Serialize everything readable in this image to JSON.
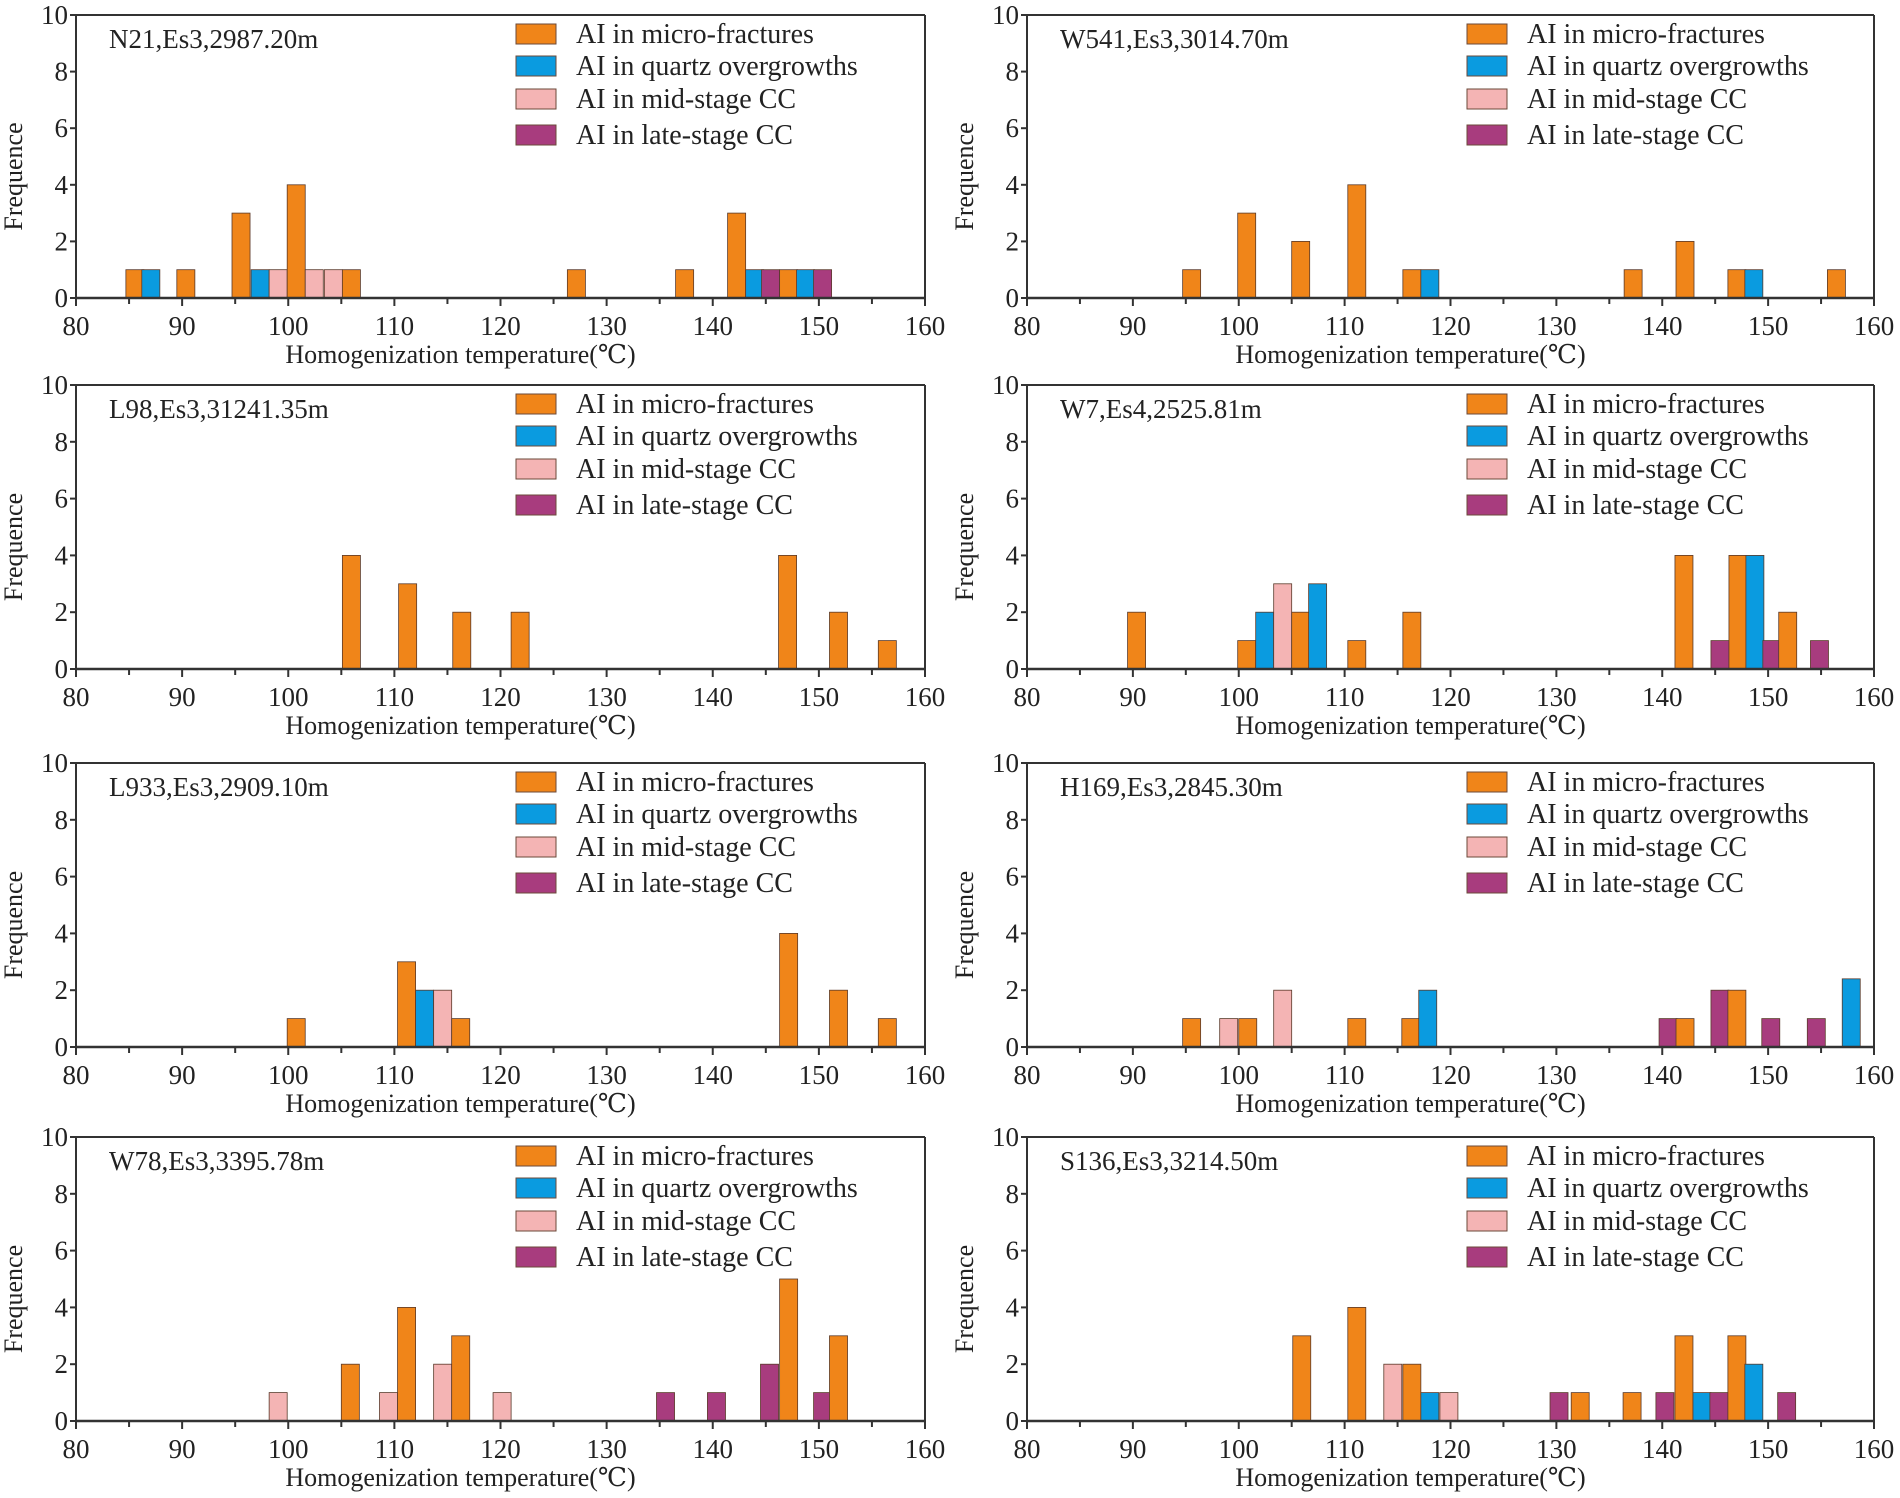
{
  "series": [
    {
      "key": "m",
      "name": "AI in micro-fractures",
      "color": "#F08519"
    },
    {
      "key": "q",
      "name": "AI in quartz overgrowths",
      "color": "#0A9BE0"
    },
    {
      "key": "p",
      "name": "AI in mid-stage CC",
      "color": "#F4B4B4"
    },
    {
      "key": "l",
      "name": "AI in late-stage CC",
      "color": "#A83C7E"
    }
  ],
  "chart_data": [
    {
      "type": "bar",
      "title": "N21,Es3,2987.20m",
      "xlabel": "Homogenization temperature(℃)",
      "ylabel": "Frequence",
      "xlim": [
        80,
        160
      ],
      "ylim": [
        0,
        10
      ],
      "xticks": [
        80,
        90,
        100,
        110,
        120,
        130,
        140,
        150,
        160
      ],
      "yticks": [
        0,
        2,
        4,
        6,
        8,
        10
      ],
      "bin_width": 1.7,
      "legend": "top-right",
      "bars": [
        {
          "x": 84.7,
          "v": 1,
          "s": "m"
        },
        {
          "x": 86.2,
          "v": 1,
          "s": "q"
        },
        {
          "x": 89.5,
          "v": 1,
          "s": "m"
        },
        {
          "x": 94.7,
          "v": 3,
          "s": "m"
        },
        {
          "x": 96.5,
          "v": 1,
          "s": "q"
        },
        {
          "x": 98.2,
          "v": 1,
          "s": "p"
        },
        {
          "x": 99.9,
          "v": 4,
          "s": "m"
        },
        {
          "x": 101.6,
          "v": 1,
          "s": "p"
        },
        {
          "x": 103.4,
          "v": 1,
          "s": "p"
        },
        {
          "x": 105.1,
          "v": 1,
          "s": "m"
        },
        {
          "x": 126.3,
          "v": 1,
          "s": "m"
        },
        {
          "x": 136.5,
          "v": 1,
          "s": "m"
        },
        {
          "x": 141.4,
          "v": 3,
          "s": "m"
        },
        {
          "x": 143.1,
          "v": 1,
          "s": "q"
        },
        {
          "x": 144.6,
          "v": 1,
          "s": "l"
        },
        {
          "x": 146.3,
          "v": 1,
          "s": "m"
        },
        {
          "x": 147.9,
          "v": 1,
          "s": "q"
        },
        {
          "x": 149.5,
          "v": 1,
          "s": "l"
        }
      ]
    },
    {
      "type": "bar",
      "title": "W541,Es3,3014.70m",
      "xlabel": "Homogenization temperature(℃)",
      "ylabel": "Frequence",
      "xlim": [
        80,
        160
      ],
      "ylim": [
        0,
        10
      ],
      "xticks": [
        80,
        90,
        100,
        110,
        120,
        130,
        140,
        150,
        160
      ],
      "yticks": [
        0,
        2,
        4,
        6,
        8,
        10
      ],
      "bin_width": 1.7,
      "legend": "top-right",
      "bars": [
        {
          "x": 94.7,
          "v": 1,
          "s": "m"
        },
        {
          "x": 99.9,
          "v": 3,
          "s": "m"
        },
        {
          "x": 105.0,
          "v": 2,
          "s": "m"
        },
        {
          "x": 110.3,
          "v": 4,
          "s": "m"
        },
        {
          "x": 115.5,
          "v": 1,
          "s": "m"
        },
        {
          "x": 117.2,
          "v": 1,
          "s": "q"
        },
        {
          "x": 136.4,
          "v": 1,
          "s": "m"
        },
        {
          "x": 141.3,
          "v": 2,
          "s": "m"
        },
        {
          "x": 146.2,
          "v": 1,
          "s": "m"
        },
        {
          "x": 147.8,
          "v": 1,
          "s": "q"
        },
        {
          "x": 155.6,
          "v": 1,
          "s": "m"
        }
      ]
    },
    {
      "type": "bar",
      "title": "L98,Es3,31241.35m",
      "xlabel": "Homogenization temperature(℃)",
      "ylabel": "Frequence",
      "xlim": [
        80,
        160
      ],
      "ylim": [
        0,
        10
      ],
      "xticks": [
        80,
        90,
        100,
        110,
        120,
        130,
        140,
        150,
        160
      ],
      "yticks": [
        0,
        2,
        4,
        6,
        8,
        10
      ],
      "bin_width": 1.7,
      "legend": "top-right",
      "bars": [
        {
          "x": 105.1,
          "v": 4,
          "s": "m"
        },
        {
          "x": 110.4,
          "v": 3,
          "s": "m"
        },
        {
          "x": 115.5,
          "v": 2,
          "s": "m"
        },
        {
          "x": 121.0,
          "v": 2,
          "s": "m"
        },
        {
          "x": 146.2,
          "v": 4,
          "s": "m"
        },
        {
          "x": 151.0,
          "v": 2,
          "s": "m"
        },
        {
          "x": 155.6,
          "v": 1,
          "s": "m"
        }
      ]
    },
    {
      "type": "bar",
      "title": "W7,Es4,2525.81m",
      "xlabel": "Homogenization temperature(℃)",
      "ylabel": "Frequence",
      "xlim": [
        80,
        160
      ],
      "ylim": [
        0,
        10
      ],
      "xticks": [
        80,
        90,
        100,
        110,
        120,
        130,
        140,
        150,
        160
      ],
      "yticks": [
        0,
        2,
        4,
        6,
        8,
        10
      ],
      "bin_width": 1.7,
      "legend": "top-right",
      "bars": [
        {
          "x": 89.5,
          "v": 2,
          "s": "m"
        },
        {
          "x": 99.9,
          "v": 1,
          "s": "m"
        },
        {
          "x": 101.6,
          "v": 2,
          "s": "q"
        },
        {
          "x": 103.3,
          "v": 3,
          "s": "p"
        },
        {
          "x": 105.0,
          "v": 2,
          "s": "m"
        },
        {
          "x": 106.6,
          "v": 3,
          "s": "q"
        },
        {
          "x": 110.3,
          "v": 1,
          "s": "m"
        },
        {
          "x": 115.5,
          "v": 2,
          "s": "m"
        },
        {
          "x": 141.2,
          "v": 4,
          "s": "m"
        },
        {
          "x": 144.6,
          "v": 1,
          "s": "l"
        },
        {
          "x": 146.3,
          "v": 4,
          "s": "m"
        },
        {
          "x": 147.9,
          "v": 4,
          "s": "q"
        },
        {
          "x": 149.5,
          "v": 1,
          "s": "l"
        },
        {
          "x": 151.0,
          "v": 2,
          "s": "m"
        },
        {
          "x": 154.0,
          "v": 1,
          "s": "l"
        }
      ]
    },
    {
      "type": "bar",
      "title": "L933,Es3,2909.10m",
      "xlabel": "Homogenization temperature(℃)",
      "ylabel": "Frequence",
      "xlim": [
        80,
        160
      ],
      "ylim": [
        0,
        10
      ],
      "xticks": [
        80,
        90,
        100,
        110,
        120,
        130,
        140,
        150,
        160
      ],
      "yticks": [
        0,
        2,
        4,
        6,
        8,
        10
      ],
      "bin_width": 1.7,
      "legend": "top-right",
      "bars": [
        {
          "x": 99.9,
          "v": 1,
          "s": "m"
        },
        {
          "x": 110.3,
          "v": 3,
          "s": "m"
        },
        {
          "x": 112.0,
          "v": 2,
          "s": "q"
        },
        {
          "x": 113.7,
          "v": 2,
          "s": "p"
        },
        {
          "x": 115.4,
          "v": 1,
          "s": "m"
        },
        {
          "x": 146.3,
          "v": 4,
          "s": "m"
        },
        {
          "x": 151.0,
          "v": 2,
          "s": "m"
        },
        {
          "x": 155.6,
          "v": 1,
          "s": "m"
        }
      ]
    },
    {
      "type": "bar",
      "title": "H169,Es3,2845.30m",
      "xlabel": "Homogenization temperature(℃)",
      "ylabel": "Frequence",
      "xlim": [
        80,
        160
      ],
      "ylim": [
        0,
        10
      ],
      "xticks": [
        80,
        90,
        100,
        110,
        120,
        130,
        140,
        150,
        160
      ],
      "yticks": [
        0,
        2,
        4,
        6,
        8,
        10
      ],
      "bin_width": 1.7,
      "legend": "top-right",
      "bars": [
        {
          "x": 94.7,
          "v": 1,
          "s": "m"
        },
        {
          "x": 98.2,
          "v": 1,
          "s": "p"
        },
        {
          "x": 100.0,
          "v": 1,
          "s": "m"
        },
        {
          "x": 103.3,
          "v": 2,
          "s": "p"
        },
        {
          "x": 110.3,
          "v": 1,
          "s": "m"
        },
        {
          "x": 115.4,
          "v": 1,
          "s": "m"
        },
        {
          "x": 117.0,
          "v": 2,
          "s": "q"
        },
        {
          "x": 139.7,
          "v": 1,
          "s": "l"
        },
        {
          "x": 141.3,
          "v": 1,
          "s": "m"
        },
        {
          "x": 144.6,
          "v": 2,
          "s": "l"
        },
        {
          "x": 146.2,
          "v": 2,
          "s": "m"
        },
        {
          "x": 149.4,
          "v": 1,
          "s": "l"
        },
        {
          "x": 153.7,
          "v": 1,
          "s": "l"
        },
        {
          "x": 157.0,
          "v": 2.4,
          "s": "q"
        }
      ]
    },
    {
      "type": "bar",
      "title": "W78,Es3,3395.78m",
      "xlabel": "Homogenization temperature(℃)",
      "ylabel": "Frequence",
      "xlim": [
        80,
        160
      ],
      "ylim": [
        0,
        10
      ],
      "xticks": [
        80,
        90,
        100,
        110,
        120,
        130,
        140,
        150,
        160
      ],
      "yticks": [
        0,
        2,
        4,
        6,
        8,
        10
      ],
      "bin_width": 1.7,
      "legend": "top-right",
      "bars": [
        {
          "x": 98.2,
          "v": 1,
          "s": "p"
        },
        {
          "x": 105.0,
          "v": 2,
          "s": "m"
        },
        {
          "x": 108.6,
          "v": 1,
          "s": "p"
        },
        {
          "x": 110.3,
          "v": 4,
          "s": "m"
        },
        {
          "x": 113.7,
          "v": 2,
          "s": "p"
        },
        {
          "x": 115.4,
          "v": 3,
          "s": "m"
        },
        {
          "x": 119.3,
          "v": 1,
          "s": "p"
        },
        {
          "x": 134.7,
          "v": 1,
          "s": "l"
        },
        {
          "x": 139.5,
          "v": 1,
          "s": "l"
        },
        {
          "x": 144.5,
          "v": 2,
          "s": "l"
        },
        {
          "x": 146.3,
          "v": 5,
          "s": "m"
        },
        {
          "x": 149.5,
          "v": 1,
          "s": "l"
        },
        {
          "x": 151.0,
          "v": 3,
          "s": "m"
        }
      ]
    },
    {
      "type": "bar",
      "title": "S136,Es3,3214.50m",
      "xlabel": "Homogenization temperature(℃)",
      "ylabel": "Frequence",
      "xlim": [
        80,
        160
      ],
      "ylim": [
        0,
        10
      ],
      "xticks": [
        80,
        90,
        100,
        110,
        120,
        130,
        140,
        150,
        160
      ],
      "yticks": [
        0,
        2,
        4,
        6,
        8,
        10
      ],
      "bin_width": 1.7,
      "legend": "top-right",
      "bars": [
        {
          "x": 105.1,
          "v": 3,
          "s": "m"
        },
        {
          "x": 110.3,
          "v": 4,
          "s": "m"
        },
        {
          "x": 113.7,
          "v": 2,
          "s": "p"
        },
        {
          "x": 115.5,
          "v": 2,
          "s": "m"
        },
        {
          "x": 117.2,
          "v": 1,
          "s": "q"
        },
        {
          "x": 119.0,
          "v": 1,
          "s": "p"
        },
        {
          "x": 129.4,
          "v": 1,
          "s": "l"
        },
        {
          "x": 131.4,
          "v": 1,
          "s": "m"
        },
        {
          "x": 136.3,
          "v": 1,
          "s": "m"
        },
        {
          "x": 139.4,
          "v": 1,
          "s": "l"
        },
        {
          "x": 141.2,
          "v": 3,
          "s": "m"
        },
        {
          "x": 142.9,
          "v": 1,
          "s": "q"
        },
        {
          "x": 144.5,
          "v": 1,
          "s": "l"
        },
        {
          "x": 146.2,
          "v": 3,
          "s": "m"
        },
        {
          "x": 147.8,
          "v": 2,
          "s": "q"
        },
        {
          "x": 150.9,
          "v": 1,
          "s": "l"
        }
      ]
    }
  ]
}
